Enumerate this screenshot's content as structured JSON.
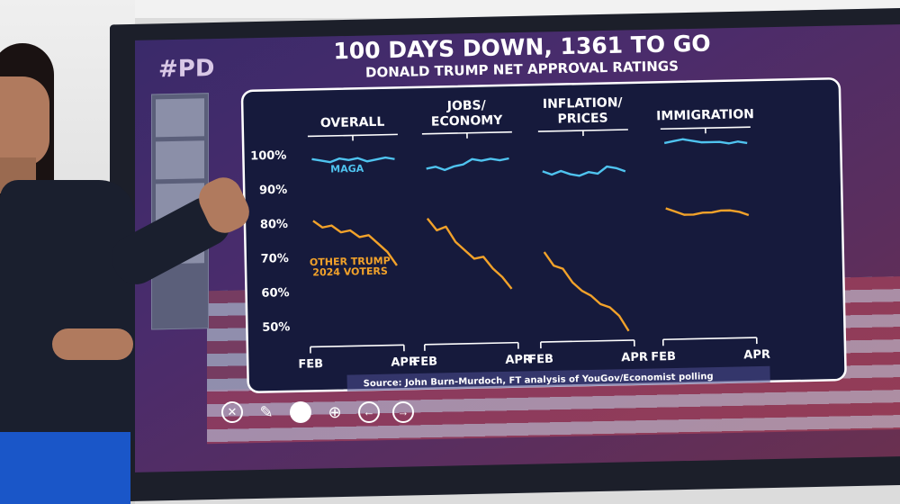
{
  "header": {
    "logo_fragment": "#PD",
    "title": "100 DAYS DOWN, 1361 TO GO",
    "subtitle": "DONALD TRUMP NET APPROVAL RATINGS"
  },
  "source": "Source: John Burn-Murdoch, FT analysis of YouGov/Economist polling",
  "toolbar": {
    "close_glyph": "✕",
    "pen_glyph": "✎",
    "zoom_glyph": "⊕",
    "back_glyph": "←",
    "forward_glyph": "→"
  },
  "colors": {
    "maga": "#4fc3ef",
    "other": "#f2a22a",
    "panel_border": "#ffffff",
    "panel_bg": "#161a3c"
  },
  "chart_data": {
    "type": "line",
    "y_ticks": [
      "100%",
      "90%",
      "80%",
      "70%",
      "60%",
      "50%"
    ],
    "ylim": [
      48,
      102
    ],
    "x_tick_labels": [
      "FEB",
      "APR"
    ],
    "series_labels": {
      "maga": "MAGA",
      "other": "OTHER TRUMP 2024 VOTERS"
    },
    "panels": [
      {
        "title": "OVERALL",
        "maga": [
          98.5,
          98.0,
          97.5,
          98.5,
          98.0,
          98.5,
          97.5,
          98.0,
          98.5,
          98.0
        ],
        "other": [
          80.5,
          78.5,
          79.0,
          77.0,
          77.5,
          75.5,
          76.0,
          73.5,
          71.0,
          67.0
        ]
      },
      {
        "title": "JOBS/\nECONOMY",
        "maga": [
          95.0,
          95.5,
          94.5,
          95.5,
          96.0,
          97.5,
          97.0,
          97.5,
          97.0,
          97.5
        ],
        "other": [
          80.5,
          77.0,
          78.0,
          73.5,
          71.0,
          68.5,
          69.0,
          65.5,
          63.0,
          59.5
        ]
      },
      {
        "title": "INFLATION/\nPRICES",
        "maga": [
          93.5,
          92.5,
          93.5,
          92.5,
          92.0,
          93.0,
          92.5,
          94.5,
          94.0,
          93.0
        ],
        "other": [
          70.0,
          66.0,
          65.0,
          61.0,
          58.5,
          57.0,
          54.5,
          53.5,
          51.0,
          46.5
        ]
      },
      {
        "title": "IMMIGRATION",
        "maga": [
          101.0,
          101.5,
          102.0,
          101.5,
          101.0,
          101.0,
          101.0,
          100.5,
          101.0,
          100.5
        ],
        "other": [
          82.0,
          81.0,
          80.0,
          80.0,
          80.5,
          80.5,
          81.0,
          81.0,
          80.5,
          79.5
        ]
      }
    ]
  }
}
